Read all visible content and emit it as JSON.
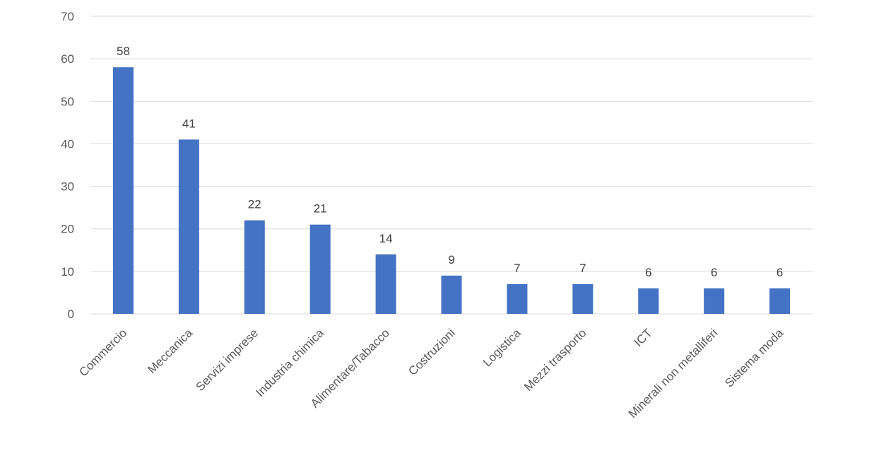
{
  "chart_data": {
    "type": "bar",
    "categories": [
      "Commercio",
      "Meccanica",
      "Servizi imprese",
      "Industria chimica",
      "Alimentare/Tabacco",
      "Costruzioni",
      "Logistica",
      "Mezzi trasporto",
      "ICT",
      "Minerali non metalliferi",
      "Sistema moda"
    ],
    "values": [
      58,
      41,
      22,
      21,
      14,
      9,
      7,
      7,
      6,
      6,
      6
    ],
    "title": "",
    "xlabel": "",
    "ylabel": "",
    "ylim": [
      0,
      70
    ],
    "yticks": [
      0,
      10,
      20,
      30,
      40,
      50,
      60,
      70
    ],
    "grid": true,
    "legend": "none",
    "bar_color": "#4472c4",
    "data_labels": true
  }
}
